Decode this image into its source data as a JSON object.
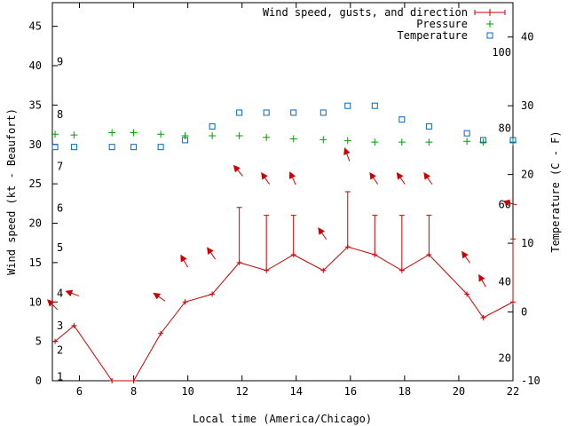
{
  "chart_data": {
    "type": "line",
    "xlabel": "Local time (America/Chicago)",
    "ylabel": "Wind speed (kt - Beaufort)",
    "y2label": "Temperature (C - F)",
    "xlim": [
      5,
      22
    ],
    "ylim": [
      0,
      48
    ],
    "y2lim": [
      -10,
      45
    ],
    "xticks": [
      6,
      8,
      10,
      12,
      14,
      16,
      18,
      20,
      22
    ],
    "yticks": [
      0,
      5,
      10,
      15,
      20,
      25,
      30,
      35,
      40,
      45
    ],
    "y2ticks": [
      -10,
      0,
      10,
      20,
      30,
      40
    ],
    "beaufort_ticks": [
      {
        "label": "1",
        "y": 0.5
      },
      {
        "label": "2",
        "y": 3.9
      },
      {
        "label": "3",
        "y": 7.0
      },
      {
        "label": "4",
        "y": 11.1
      },
      {
        "label": "5",
        "y": 16.9
      },
      {
        "label": "6",
        "y": 21.9
      },
      {
        "label": "7",
        "y": 27.2
      },
      {
        "label": "8",
        "y": 33.8
      },
      {
        "label": "9",
        "y": 40.5
      }
    ],
    "fahrenheit_ticks": [
      {
        "label": "20",
        "t_c": -6.7
      },
      {
        "label": "40",
        "t_c": 4.4
      },
      {
        "label": "60",
        "t_c": 15.6
      },
      {
        "label": "80",
        "t_c": 26.7
      },
      {
        "label": "100",
        "t_c": 37.8
      }
    ],
    "series": [
      {
        "name": "Wind speed, gusts, and direction",
        "color": "#cc0000",
        "x": [
          5.1,
          5.8,
          7.2,
          8.0,
          9.0,
          9.9,
          10.9,
          11.9,
          12.9,
          13.9,
          15.0,
          15.9,
          16.9,
          17.9,
          18.9,
          20.3,
          20.9,
          22.0
        ],
        "values": [
          5,
          7,
          0,
          0,
          6,
          10,
          11,
          15,
          14,
          16,
          14,
          17,
          16,
          14,
          16,
          11,
          8,
          10
        ],
        "gusts": [
          null,
          null,
          null,
          null,
          null,
          null,
          null,
          22,
          21,
          21,
          null,
          24,
          21,
          21,
          21,
          null,
          null,
          18
        ],
        "direction_arrows": [
          {
            "x": 5.05,
            "y": 9.5,
            "angle": -135
          },
          {
            "x": 5.8,
            "y": 11.0,
            "angle": -160
          },
          {
            "x": 9.0,
            "y": 10.5,
            "angle": -145
          },
          {
            "x": 9.9,
            "y": 15.0,
            "angle": -120
          },
          {
            "x": 10.9,
            "y": 16.0,
            "angle": -125
          },
          {
            "x": 11.9,
            "y": 26.5,
            "angle": -130
          },
          {
            "x": 12.9,
            "y": 25.5,
            "angle": -125
          },
          {
            "x": 13.9,
            "y": 25.5,
            "angle": -115
          },
          {
            "x": 15.0,
            "y": 18.5,
            "angle": -125
          },
          {
            "x": 15.9,
            "y": 28.5,
            "angle": -110
          },
          {
            "x": 16.9,
            "y": 25.5,
            "angle": -125
          },
          {
            "x": 17.9,
            "y": 25.5,
            "angle": -125
          },
          {
            "x": 18.9,
            "y": 25.5,
            "angle": -125
          },
          {
            "x": 20.3,
            "y": 15.5,
            "angle": -125
          },
          {
            "x": 20.9,
            "y": 12.5,
            "angle": -120
          },
          {
            "x": 21.95,
            "y": 22.5,
            "angle": -165
          }
        ]
      },
      {
        "name": "Pressure",
        "color": "#00a000",
        "marker": "plus",
        "x": [
          5.1,
          5.8,
          7.2,
          8.0,
          9.0,
          9.9,
          10.9,
          11.9,
          12.9,
          13.9,
          15.0,
          15.9,
          16.9,
          17.9,
          18.9,
          20.3,
          20.9,
          22.0
        ],
        "values": [
          31.3,
          31.2,
          31.5,
          31.5,
          31.3,
          31.1,
          31.1,
          31.1,
          30.9,
          30.7,
          30.6,
          30.5,
          30.3,
          30.3,
          30.3,
          30.4,
          30.3,
          30.3
        ]
      },
      {
        "name": "Temperature",
        "color": "#0066cc",
        "marker": "square",
        "axis": "y2",
        "x": [
          5.1,
          5.8,
          7.2,
          8.0,
          9.0,
          9.9,
          10.9,
          11.9,
          12.9,
          13.9,
          15.0,
          15.9,
          16.9,
          17.9,
          18.9,
          20.3,
          20.9,
          22.0
        ],
        "values": [
          24,
          24,
          24,
          24,
          24,
          25,
          27,
          29,
          29,
          29,
          29,
          30,
          30,
          28,
          27,
          26,
          25,
          25
        ]
      }
    ]
  }
}
